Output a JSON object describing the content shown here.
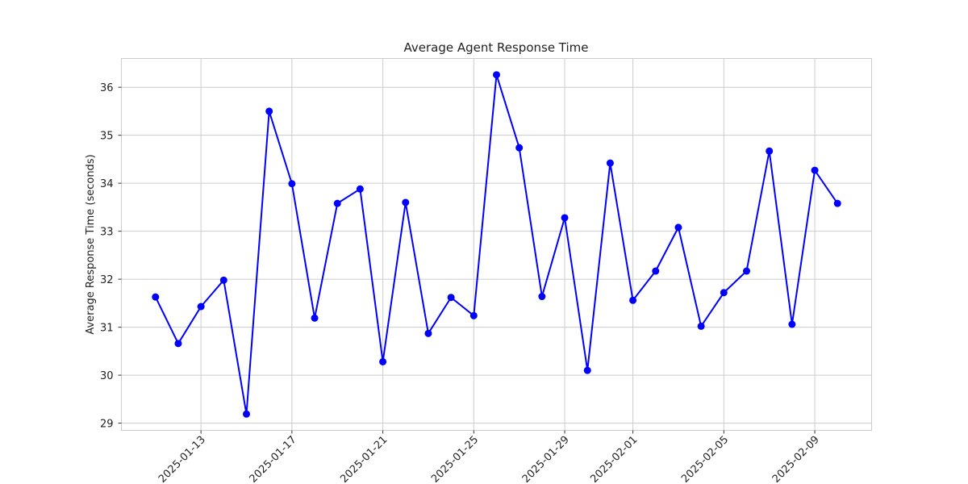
{
  "chart_data": {
    "type": "line",
    "title": "Average Agent Response Time",
    "xlabel": "",
    "ylabel": "Average Response Time (seconds)",
    "x": [
      "2025-01-11",
      "2025-01-12",
      "2025-01-13",
      "2025-01-14",
      "2025-01-15",
      "2025-01-16",
      "2025-01-17",
      "2025-01-18",
      "2025-01-19",
      "2025-01-20",
      "2025-01-21",
      "2025-01-22",
      "2025-01-23",
      "2025-01-24",
      "2025-01-25",
      "2025-01-26",
      "2025-01-27",
      "2025-01-28",
      "2025-01-29",
      "2025-01-30",
      "2025-01-31",
      "2025-02-01",
      "2025-02-02",
      "2025-02-03",
      "2025-02-04",
      "2025-02-05",
      "2025-02-06",
      "2025-02-07",
      "2025-02-08",
      "2025-02-09",
      "2025-02-10"
    ],
    "series": [
      {
        "color": "#0000ff",
        "marker": "circle",
        "values": [
          31.63,
          30.66,
          31.43,
          31.98,
          29.19,
          35.5,
          33.99,
          31.19,
          33.58,
          33.88,
          30.28,
          33.6,
          30.87,
          31.62,
          31.24,
          36.26,
          34.74,
          31.64,
          33.28,
          30.1,
          34.42,
          31.56,
          32.17,
          33.08,
          31.02,
          31.72,
          32.17,
          34.67,
          31.06,
          34.27,
          33.58
        ]
      }
    ],
    "xticks": [
      "2025-01-13",
      "2025-01-17",
      "2025-01-21",
      "2025-01-25",
      "2025-01-29",
      "2025-02-01",
      "2025-02-05",
      "2025-02-09"
    ],
    "yticks": [
      29,
      30,
      31,
      32,
      33,
      34,
      35,
      36
    ],
    "xlim": [
      "2025-01-09T12:00",
      "2025-02-11T12:00"
    ],
    "ylim": [
      28.85,
      36.6
    ],
    "grid": true
  }
}
